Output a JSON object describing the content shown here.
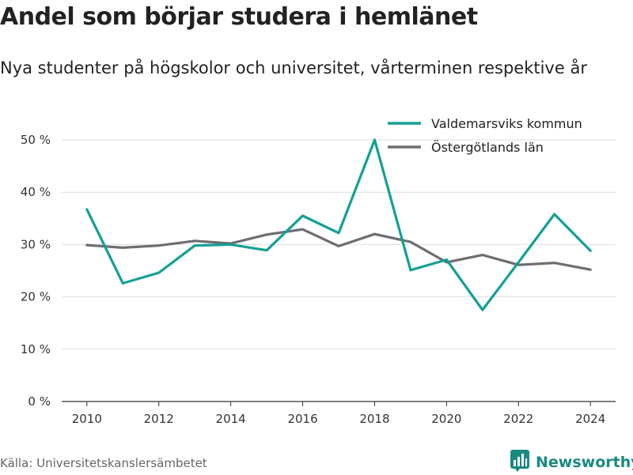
{
  "header": {
    "title": "Andel som börjar studera i hemlänet",
    "subtitle": "Nya studenter på högskolor och universitet, vårterminen respektive år"
  },
  "footer": {
    "source": "Källa: Universitetskanslersämbetet",
    "brand": "Newsworthy",
    "brand_icon": "bar-chart-logo-icon",
    "brand_color": "#1a8a80"
  },
  "chart_data": {
    "type": "line",
    "x": [
      2010,
      2011,
      2012,
      2013,
      2014,
      2015,
      2016,
      2017,
      2018,
      2019,
      2020,
      2021,
      2022,
      2023,
      2024
    ],
    "x_ticks": [
      2010,
      2012,
      2014,
      2016,
      2018,
      2020,
      2022,
      2024
    ],
    "x_tick_labels": [
      "2010",
      "2012",
      "2014",
      "2016",
      "2018",
      "2020",
      "2022",
      "2024"
    ],
    "xlim": [
      2009.3,
      2024.7
    ],
    "y_ticks": [
      0,
      10,
      20,
      30,
      40,
      50
    ],
    "y_tick_labels": [
      "0 %",
      "10 %",
      "20 %",
      "30 %",
      "40 %",
      "50 %"
    ],
    "ylim": [
      0,
      50
    ],
    "grid": true,
    "legend_position": "top-right",
    "series": [
      {
        "name": "Valdemarsviks kommun",
        "color": "#14a093",
        "values": [
          36.7,
          22.6,
          24.6,
          29.8,
          30.0,
          28.9,
          35.5,
          32.2,
          50.0,
          25.1,
          27.1,
          17.5,
          26.6,
          35.8,
          28.8
        ]
      },
      {
        "name": "Östergötlands län",
        "color": "#6e6d72",
        "values": [
          29.9,
          29.4,
          29.8,
          30.7,
          30.2,
          31.9,
          32.9,
          29.7,
          32.0,
          30.5,
          26.6,
          28.0,
          26.1,
          26.5,
          25.2
        ]
      }
    ]
  }
}
